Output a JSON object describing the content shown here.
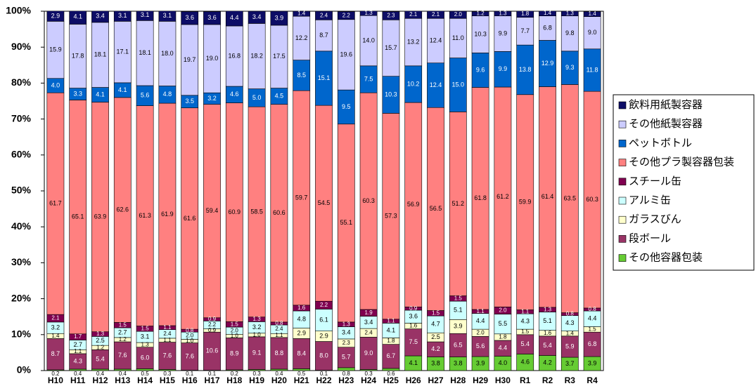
{
  "chart_data": {
    "type": "stacked_bar_100",
    "categories": [
      "H10",
      "H11",
      "H12",
      "H13",
      "H14",
      "H15",
      "H16",
      "H17",
      "H18",
      "H19",
      "H20",
      "H21",
      "H22",
      "H23",
      "H24",
      "H25",
      "H26",
      "H27",
      "H28",
      "H29",
      "H30",
      "R1",
      "R2",
      "R3",
      "R4"
    ],
    "ylim": [
      0,
      100
    ],
    "yticks": [
      {
        "value": 0,
        "label": "0%"
      },
      {
        "value": 10,
        "label": "10%"
      },
      {
        "value": 20,
        "label": "20%"
      },
      {
        "value": 30,
        "label": "30%"
      },
      {
        "value": 40,
        "label": "40%"
      },
      {
        "value": 50,
        "label": "50%"
      },
      {
        "value": 60,
        "label": "60%"
      },
      {
        "value": 70,
        "label": "70%"
      },
      {
        "value": 80,
        "label": "80%"
      },
      {
        "value": 90,
        "label": "90%"
      },
      {
        "value": 100,
        "label": "100%"
      }
    ],
    "grid": false,
    "legend": "right",
    "series": [
      {
        "name": "その他容器包装",
        "color": "#66cc33",
        "text_color": "#000000",
        "values": [
          0.2,
          0.4,
          0.4,
          0.4,
          0.5,
          0.3,
          0.1,
          0.1,
          0.2,
          0.3,
          0.4,
          0.5,
          0.1,
          0.8,
          0.3,
          0.6,
          4.1,
          3.8,
          3.8,
          3.9,
          4.0,
          4.6,
          4.2,
          3.7,
          3.9
        ],
        "value_labels": [
          "0.2",
          "0.4",
          "0.4",
          "0.4",
          "0.5",
          "0.3",
          "0.1",
          "0.1",
          "0.2",
          "0.3",
          "0.4",
          "0.5",
          "0.1",
          "0.8",
          "0.3",
          "0.6",
          "4.1",
          "3.8",
          "3.8",
          "3.9",
          "4.0",
          "4.6",
          "4.2",
          "3.7",
          "3.9"
        ]
      },
      {
        "name": "段ボール",
        "color": "#993366",
        "text_color": "#ffffff",
        "values": [
          8.7,
          4.3,
          5.4,
          7.6,
          6.0,
          7.6,
          7.6,
          10.6,
          8.9,
          9.1,
          8.8,
          8.4,
          8.0,
          5.7,
          9.0,
          6.7,
          7.5,
          4.2,
          6.5,
          5.6,
          4.4,
          5.4,
          5.4,
          5.9,
          6.8
        ],
        "value_labels": [
          "8.7",
          "4.3",
          "5.4",
          "7.6",
          "6.0",
          "7.6",
          "7.6",
          "10.6",
          "8.9",
          "9.1",
          "8.8",
          "8.4",
          "8.0",
          "5.7",
          "9.0",
          "6.7",
          "7.5",
          "4.2",
          "6.5",
          "5.6",
          "4.4",
          "5.4",
          "5.4",
          "5.9",
          "6.8"
        ]
      },
      {
        "name": "ガラスびん",
        "color": "#ffffcc",
        "text_color": "#000000",
        "values": [
          1.4,
          1.1,
          1.2,
          1.2,
          1.3,
          1.1,
          1.0,
          0.9,
          1.0,
          1.0,
          1.1,
          2.9,
          2.9,
          2.3,
          2.4,
          1.8,
          1.6,
          2.5,
          3.9,
          2.0,
          1.8,
          1.5,
          1.6,
          1.4,
          1.5
        ],
        "value_labels": [
          "1.4",
          "1.1",
          "1.2",
          "1.2",
          "1.3",
          "1.1",
          "1.0",
          "0.9",
          "1.0",
          "1.0",
          "1.1",
          "2.9",
          "2.9",
          "2.3",
          "2.4",
          "1.8",
          "1.6",
          "2.5",
          "3.9",
          "2.0",
          "1.8",
          "1.5",
          "1.6",
          "1.4",
          "1.5"
        ]
      },
      {
        "name": "アルミ缶",
        "color": "#ccffff",
        "text_color": "#000000",
        "values": [
          3.2,
          2.7,
          2.5,
          2.7,
          3.1,
          2.4,
          2.0,
          2.2,
          2.0,
          3.2,
          2.4,
          4.8,
          6.1,
          3.4,
          3.4,
          4.1,
          3.6,
          4.7,
          5.1,
          4.4,
          5.5,
          4.3,
          5.1,
          4.3,
          4.4
        ],
        "value_labels": [
          "3.2",
          "2.7",
          "2.5",
          "2.7",
          "3.1",
          "2.4",
          "2.0",
          "2.2",
          "2.0",
          "3.2",
          "2.4",
          "4.8",
          "6.1",
          "3.4",
          "3.4",
          "4.1",
          "3.6",
          "4.7",
          "5.1",
          "4.4",
          "5.5",
          "4.3",
          "5.1",
          "4.3",
          "4.4"
        ]
      },
      {
        "name": "スチール缶",
        "color": "#800050",
        "text_color": "#ffffff",
        "values": [
          2.1,
          1.7,
          1.3,
          1.5,
          1.5,
          1.1,
          0.8,
          0.9,
          1.5,
          1.3,
          0.8,
          1.6,
          2.2,
          1.3,
          1.9,
          1.1,
          0.9,
          1.5,
          1.5,
          1.1,
          2.0,
          1.1,
          1.3,
          0.8,
          0.8
        ],
        "value_labels": [
          "2.1",
          "1.7",
          "1.3",
          "1.5",
          "1.5",
          "1.1",
          "0.8",
          "0.9",
          "1.5",
          "1.3",
          "0.8",
          "1.6",
          "2.2",
          "1.3",
          "1.9",
          "1.1",
          "0.9",
          "1.5",
          "1.5",
          "1.1",
          "2.0",
          "1.1",
          "1.3",
          "0.8",
          "0.8"
        ]
      },
      {
        "name": "その他プラ製容器包装",
        "color": "#ff8080",
        "text_color": "#000000",
        "values": [
          61.7,
          65.1,
          63.9,
          62.6,
          61.3,
          61.9,
          61.6,
          59.4,
          60.9,
          58.5,
          60.6,
          59.7,
          54.5,
          55.1,
          60.3,
          57.3,
          56.9,
          56.5,
          51.2,
          61.8,
          61.2,
          59.9,
          61.4,
          63.5,
          60.3
        ],
        "value_labels": [
          "61.7",
          "65.1",
          "63.9",
          "62.6",
          "61.3",
          "61.9",
          "61.6",
          "59.4",
          "60.9",
          "58.5",
          "60.6",
          "59.7",
          "54.5",
          "55.1",
          "60.3",
          "57.3",
          "56.9",
          "56.5",
          "51.2",
          "61.8",
          "61.2",
          "59.9",
          "61.4",
          "63.5",
          "60.3"
        ]
      },
      {
        "name": "ペットボトル",
        "color": "#0066cc",
        "text_color": "#ffffff",
        "values": [
          4.0,
          3.3,
          4.1,
          4.1,
          5.6,
          4.8,
          3.5,
          3.2,
          4.6,
          5.0,
          4.5,
          8.5,
          15.1,
          9.5,
          7.5,
          10.3,
          10.2,
          12.4,
          15.0,
          9.6,
          9.9,
          13.8,
          12.9,
          9.3,
          11.8
        ],
        "value_labels": [
          "4.0",
          "3.3",
          "4.1",
          "4.1",
          "5.6",
          "4.8",
          "3.5",
          "3.2",
          "4.6",
          "5.0",
          "4.5",
          "8.5",
          "15.1",
          "9.5",
          "7.5",
          "10.3",
          "10.2",
          "12.4",
          "15.0",
          "9.6",
          "9.9",
          "13.8",
          "12.9",
          "9.3",
          "11.8"
        ]
      },
      {
        "name": "その他紙製容器",
        "color": "#ccccff",
        "text_color": "#000000",
        "values": [
          15.9,
          17.8,
          18.1,
          17.1,
          18.1,
          18.0,
          19.7,
          19.0,
          16.8,
          18.2,
          17.5,
          12.2,
          8.7,
          19.6,
          14.0,
          15.7,
          13.2,
          12.4,
          11.0,
          10.3,
          9.9,
          7.7,
          6.8,
          9.8,
          9.0
        ],
        "value_labels": [
          "15.9",
          "17.8",
          "18.1",
          "17.1",
          "18.1",
          "18.0",
          "19.7",
          "19.0",
          "16.8",
          "18.2",
          "17.5",
          "12.2",
          "8.7",
          "19.6",
          "14.0",
          "15.7",
          "13.2",
          "12.4",
          "11.0",
          "10.3",
          "9.9",
          "7.7",
          "6.8",
          "9.8",
          "9.0"
        ]
      },
      {
        "name": "飲料用紙製容器",
        "color": "#0d0d66",
        "text_color": "#ffffff",
        "values": [
          2.9,
          4.1,
          3.4,
          3.1,
          3.1,
          3.1,
          3.6,
          3.6,
          4.4,
          3.4,
          3.9,
          1.4,
          2.4,
          2.2,
          1.3,
          2.3,
          2.1,
          2.1,
          2.0,
          1.2,
          1.3,
          1.8,
          1.4,
          1.3,
          1.4
        ],
        "value_labels": [
          "2.9",
          "4.1",
          "3.4",
          "3.1",
          "3.1",
          "3.1",
          "3.6",
          "3.6",
          "4.4",
          "3.4",
          "3.9",
          "1.4",
          "2.4",
          "2.2",
          "1.3",
          "2.3",
          "2.1",
          "2.1",
          "2.0",
          "1.2",
          "1.3",
          "1.8",
          "1.4",
          "1.3",
          "1.4"
        ]
      }
    ]
  }
}
